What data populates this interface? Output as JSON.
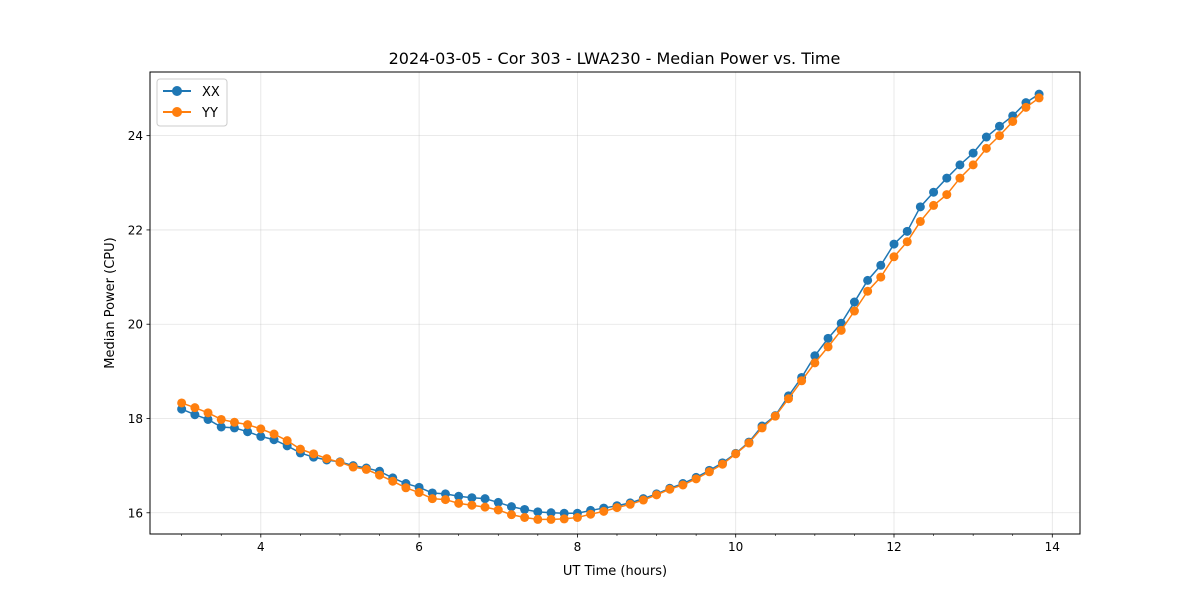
{
  "chart_data": {
    "type": "line",
    "title": "2024-03-05 - Cor 303 - LWA230 - Median Power vs. Time",
    "xlabel": "UT Time (hours)",
    "ylabel": "Median Power (CPU)",
    "xlim": [
      2.6,
      14.35
    ],
    "ylim": [
      15.55,
      25.35
    ],
    "xticks": [
      4,
      6,
      8,
      10,
      12,
      14
    ],
    "xtick_labels": [
      "4",
      "6",
      "8",
      "10",
      "12",
      "14"
    ],
    "x_minor_step": 0.5,
    "yticks": [
      16,
      18,
      20,
      22,
      24
    ],
    "ytick_labels": [
      "16",
      "18",
      "20",
      "22",
      "24"
    ],
    "grid": true,
    "legend_position": "top-left",
    "x": [
      3.0,
      3.167,
      3.333,
      3.5,
      3.667,
      3.833,
      4.0,
      4.167,
      4.333,
      4.5,
      4.667,
      4.833,
      5.0,
      5.167,
      5.333,
      5.5,
      5.667,
      5.833,
      6.0,
      6.167,
      6.333,
      6.5,
      6.667,
      6.833,
      7.0,
      7.167,
      7.333,
      7.5,
      7.667,
      7.833,
      8.0,
      8.167,
      8.333,
      8.5,
      8.667,
      8.833,
      9.0,
      9.167,
      9.333,
      9.5,
      9.667,
      9.833,
      10.0,
      10.167,
      10.333,
      10.5,
      10.667,
      10.833,
      11.0,
      11.167,
      11.333,
      11.5,
      11.667,
      11.833,
      12.0,
      12.167,
      12.333,
      12.5,
      12.667,
      12.833,
      13.0,
      13.167,
      13.333,
      13.5,
      13.667,
      13.833
    ],
    "series": [
      {
        "name": "XX",
        "color": "#1f77b4",
        "values": [
          18.2,
          18.08,
          17.98,
          17.82,
          17.8,
          17.72,
          17.62,
          17.55,
          17.42,
          17.27,
          17.18,
          17.12,
          17.08,
          17.0,
          16.95,
          16.88,
          16.74,
          16.62,
          16.54,
          16.42,
          16.4,
          16.35,
          16.32,
          16.3,
          16.22,
          16.13,
          16.07,
          16.02,
          16.0,
          15.99,
          15.99,
          16.05,
          16.1,
          16.15,
          16.21,
          16.3,
          16.4,
          16.52,
          16.62,
          16.75,
          16.9,
          17.06,
          17.26,
          17.5,
          17.84,
          18.06,
          18.48,
          18.87,
          19.33,
          19.7,
          20.02,
          20.47,
          20.93,
          21.25,
          21.7,
          21.97,
          22.49,
          22.8,
          23.1,
          23.38,
          23.63,
          23.97,
          24.2,
          24.42,
          24.7,
          24.88
        ]
      },
      {
        "name": "YY",
        "color": "#ff7f0e",
        "values": [
          18.33,
          18.23,
          18.12,
          17.98,
          17.92,
          17.87,
          17.78,
          17.67,
          17.53,
          17.35,
          17.25,
          17.15,
          17.07,
          16.97,
          16.92,
          16.8,
          16.67,
          16.53,
          16.43,
          16.3,
          16.28,
          16.2,
          16.16,
          16.12,
          16.06,
          15.96,
          15.9,
          15.86,
          15.86,
          15.87,
          15.9,
          15.97,
          16.03,
          16.11,
          16.18,
          16.27,
          16.38,
          16.5,
          16.59,
          16.72,
          16.87,
          17.03,
          17.25,
          17.48,
          17.8,
          18.05,
          18.42,
          18.8,
          19.18,
          19.52,
          19.87,
          20.28,
          20.7,
          21.0,
          21.43,
          21.75,
          22.18,
          22.52,
          22.75,
          23.1,
          23.38,
          23.73,
          24.0,
          24.3,
          24.6,
          24.8
        ]
      }
    ]
  }
}
